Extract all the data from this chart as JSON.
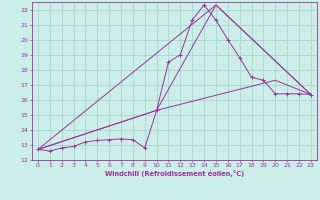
{
  "background_color": "#cceee8",
  "grid_color": "#aad4ce",
  "line_color": "#993399",
  "xlabel": "Windchill (Refroidissement éolien,°C)",
  "ylim": [
    12,
    22.5
  ],
  "xlim": [
    -0.5,
    23.5
  ],
  "yticks": [
    12,
    13,
    14,
    15,
    16,
    17,
    18,
    19,
    20,
    21,
    22
  ],
  "xticks": [
    0,
    1,
    2,
    3,
    4,
    5,
    6,
    7,
    8,
    9,
    10,
    11,
    12,
    13,
    14,
    15,
    16,
    17,
    18,
    19,
    20,
    21,
    22,
    23
  ],
  "series1_x": [
    0,
    1,
    2,
    3,
    4,
    5,
    6,
    7,
    8,
    9,
    10,
    11,
    12,
    13,
    14,
    15,
    16,
    17,
    18,
    19,
    20,
    21,
    22,
    23
  ],
  "series1_y": [
    12.7,
    12.6,
    12.8,
    12.9,
    13.2,
    13.3,
    13.35,
    13.4,
    13.35,
    12.8,
    15.3,
    18.5,
    19.0,
    21.3,
    22.3,
    21.3,
    20.0,
    18.8,
    17.5,
    17.3,
    16.4,
    16.4,
    16.4,
    16.35
  ],
  "line2_x": [
    0,
    10,
    15,
    23
  ],
  "line2_y": [
    12.7,
    15.3,
    22.3,
    16.35
  ],
  "line3_x": [
    0,
    15,
    23
  ],
  "line3_y": [
    12.7,
    22.3,
    16.35
  ],
  "line4_x": [
    0,
    10,
    20,
    23
  ],
  "line4_y": [
    12.7,
    15.3,
    17.3,
    16.35
  ]
}
